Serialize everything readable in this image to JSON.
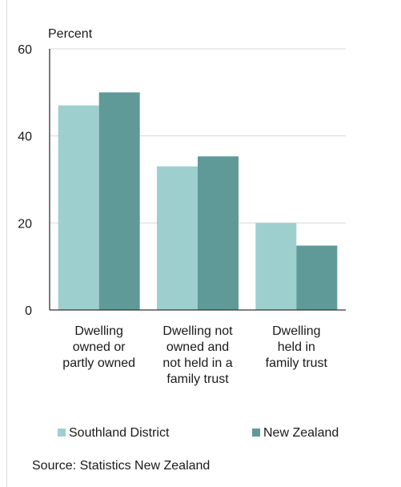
{
  "chart_data": {
    "type": "bar",
    "ylabel": "Percent",
    "categories": [
      [
        "Dwelling",
        "owned or",
        "partly owned"
      ],
      [
        "Dwelling not",
        "owned and",
        "not held in a",
        "family trust"
      ],
      [
        "Dwelling",
        "held in",
        "family trust"
      ]
    ],
    "series": [
      {
        "name": "Southland District",
        "color": "#9ecfcf",
        "values": [
          47,
          33,
          20
        ]
      },
      {
        "name": "New Zealand",
        "color": "#5f9a98",
        "values": [
          50,
          35.3,
          14.8
        ]
      }
    ],
    "ylim": [
      0,
      60
    ],
    "yticks": [
      0,
      20,
      40,
      60
    ],
    "grid": true,
    "legend": "bottom"
  },
  "source": "Source: Statistics New Zealand"
}
